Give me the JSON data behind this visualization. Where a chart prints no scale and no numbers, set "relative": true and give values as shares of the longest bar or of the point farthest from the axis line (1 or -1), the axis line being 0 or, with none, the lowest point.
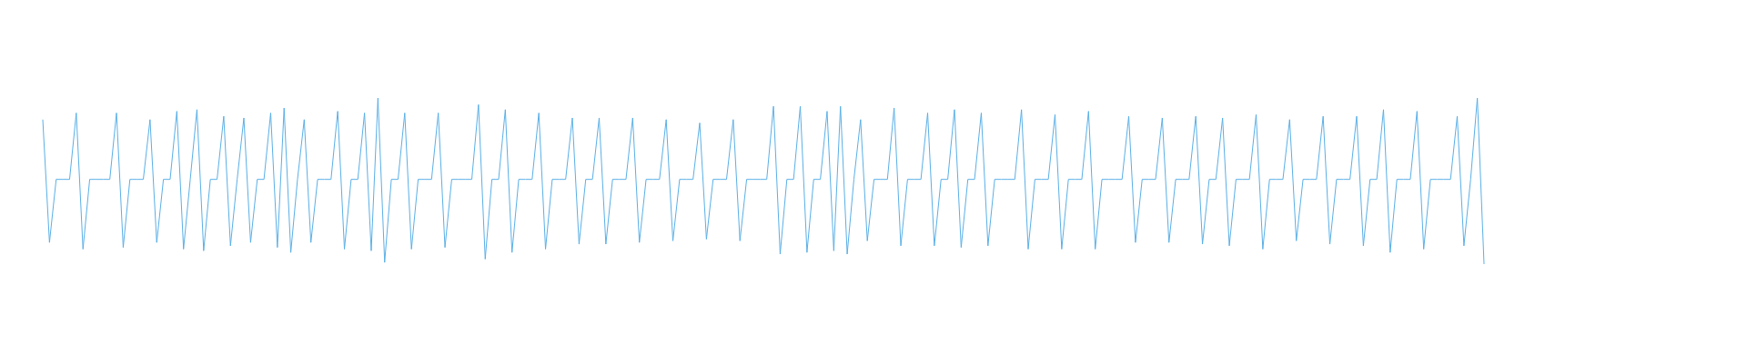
{
  "chart_data": {
    "type": "line",
    "relative": true,
    "categories": [
      null,
      null,
      null,
      null,
      null,
      null,
      null,
      null,
      null,
      null,
      null,
      null,
      null,
      null,
      null,
      null,
      null,
      null,
      null,
      null,
      null,
      null,
      null,
      null,
      null,
      null,
      null,
      null,
      null,
      null,
      null,
      null,
      null,
      null,
      null,
      null,
      null,
      null,
      null,
      null,
      null,
      null,
      null,
      null,
      null,
      null,
      null,
      null,
      null,
      null,
      null,
      null,
      null,
      null,
      null,
      null,
      null,
      null,
      null,
      null,
      null,
      null,
      null,
      null,
      null,
      null,
      null,
      null,
      null,
      null,
      null,
      null,
      null,
      null,
      null,
      null,
      null,
      null,
      null,
      null,
      null,
      null,
      null,
      null,
      null,
      null,
      null,
      null,
      null,
      null,
      null,
      null,
      null,
      null,
      null,
      null,
      null,
      null,
      null,
      null,
      null,
      null,
      null,
      null,
      null,
      null,
      null,
      null,
      null,
      null,
      null,
      null,
      null,
      null,
      null,
      null,
      null,
      null,
      null,
      null,
      null,
      null,
      null,
      null,
      null,
      null,
      null,
      null,
      null,
      null,
      null,
      null,
      null,
      null,
      null,
      null,
      null,
      null,
      null,
      null,
      null,
      null,
      null,
      null,
      null,
      null,
      null,
      null,
      null,
      null,
      null,
      null,
      null,
      null,
      null,
      null,
      null,
      null,
      null,
      null,
      null,
      null,
      null,
      null,
      null,
      null,
      null,
      null,
      null,
      null,
      null,
      null,
      null,
      null,
      null,
      null,
      null,
      null,
      null,
      null,
      null,
      null,
      null,
      null,
      null,
      null,
      null,
      null,
      null,
      null,
      null,
      null,
      null,
      null,
      null,
      null,
      null,
      null,
      null,
      null,
      null,
      null,
      null,
      null,
      null,
      null,
      null,
      null,
      null,
      null,
      null,
      null,
      null,
      null,
      null,
      null
    ],
    "series": [
      {
        "color": "#5aafe6",
        "values": [
          0.87,
          0.13,
          0.51,
          0.51,
          0.51,
          0.91,
          0.09,
          0.51,
          0.51,
          0.51,
          0.51,
          0.91,
          0.1,
          0.51,
          0.51,
          0.51,
          0.87,
          0.13,
          0.51,
          0.51,
          0.92,
          0.09,
          0.51,
          0.93,
          0.08,
          0.51,
          0.51,
          0.89,
          0.11,
          0.51,
          0.88,
          0.13,
          0.51,
          0.51,
          0.91,
          0.1,
          0.94,
          0.07,
          0.51,
          0.87,
          0.13,
          0.51,
          0.51,
          0.51,
          0.92,
          0.09,
          0.51,
          0.51,
          0.91,
          0.08,
          1.0,
          0.01,
          0.51,
          0.51,
          0.91,
          0.09,
          0.51,
          0.51,
          0.51,
          0.91,
          0.1,
          0.51,
          0.51,
          0.51,
          0.51,
          0.96,
          0.03,
          0.51,
          0.51,
          0.93,
          0.07,
          0.51,
          0.51,
          0.51,
          0.91,
          0.09,
          0.51,
          0.51,
          0.51,
          0.88,
          0.12,
          0.51,
          0.51,
          0.88,
          0.12,
          0.51,
          0.51,
          0.51,
          0.88,
          0.13,
          0.51,
          0.51,
          0.51,
          0.87,
          0.14,
          0.51,
          0.51,
          0.51,
          0.85,
          0.15,
          0.51,
          0.51,
          0.51,
          0.87,
          0.14,
          0.51,
          0.51,
          0.51,
          0.51,
          0.95,
          0.06,
          0.51,
          0.51,
          0.95,
          0.07,
          0.51,
          0.51,
          0.92,
          0.08,
          0.95,
          0.06,
          0.51,
          0.87,
          0.14,
          0.51,
          0.51,
          0.51,
          0.94,
          0.11,
          0.51,
          0.51,
          0.51,
          0.91,
          0.11,
          0.51,
          0.51,
          0.93,
          0.1,
          0.51,
          0.51,
          0.91,
          0.11,
          0.51,
          0.51,
          0.51,
          0.51,
          0.93,
          0.09,
          0.51,
          0.51,
          0.51,
          0.9,
          0.09,
          0.51,
          0.51,
          0.51,
          0.92,
          0.09,
          0.51,
          0.51,
          0.51,
          0.51,
          0.89,
          0.13,
          0.51,
          0.51,
          0.51,
          0.88,
          0.13,
          0.51,
          0.51,
          0.51,
          0.89,
          0.12,
          0.51,
          0.51,
          0.88,
          0.11,
          0.51,
          0.51,
          0.51,
          0.9,
          0.09,
          0.51,
          0.51,
          0.51,
          0.87,
          0.14,
          0.51,
          0.51,
          0.51,
          0.89,
          0.12,
          0.51,
          0.51,
          0.51,
          0.89,
          0.11,
          0.51,
          0.51,
          0.93,
          0.07,
          0.51,
          0.51,
          0.51,
          0.92,
          0.09,
          0.51,
          0.51,
          0.51,
          0.51,
          0.89,
          0.11,
          0.51,
          1.0,
          0.0
        ]
      }
    ]
  }
}
